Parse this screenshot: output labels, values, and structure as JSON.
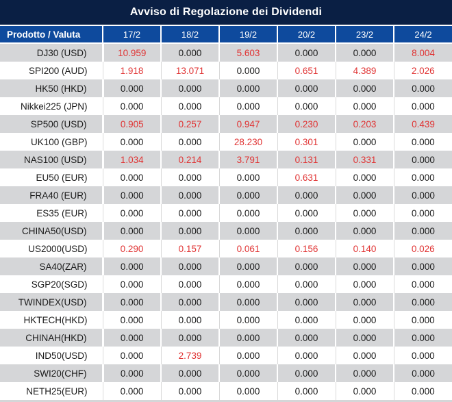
{
  "title": "Avviso di Regolazione dei Dividendi",
  "table": {
    "product_header": "Prodotto / Valuta",
    "date_headers": [
      "17/2",
      "18/2",
      "19/2",
      "20/2",
      "23/2",
      "24/2"
    ],
    "rows": [
      {
        "product": "DJ30 (USD)",
        "values": [
          "10.959",
          "0.000",
          "5.603",
          "0.000",
          "0.000",
          "8.004"
        ]
      },
      {
        "product": "SPI200 (AUD)",
        "values": [
          "1.918",
          "13.071",
          "0.000",
          "0.651",
          "4.389",
          "2.026"
        ]
      },
      {
        "product": "HK50 (HKD)",
        "values": [
          "0.000",
          "0.000",
          "0.000",
          "0.000",
          "0.000",
          "0.000"
        ]
      },
      {
        "product": "Nikkei225 (JPN)",
        "values": [
          "0.000",
          "0.000",
          "0.000",
          "0.000",
          "0.000",
          "0.000"
        ]
      },
      {
        "product": "SP500 (USD)",
        "values": [
          "0.905",
          "0.257",
          "0.947",
          "0.230",
          "0.203",
          "0.439"
        ]
      },
      {
        "product": "UK100 (GBP)",
        "values": [
          "0.000",
          "0.000",
          "28.230",
          "0.301",
          "0.000",
          "0.000"
        ]
      },
      {
        "product": "NAS100 (USD)",
        "values": [
          "1.034",
          "0.214",
          "3.791",
          "0.131",
          "0.331",
          "0.000"
        ]
      },
      {
        "product": "EU50 (EUR)",
        "values": [
          "0.000",
          "0.000",
          "0.000",
          "0.631",
          "0.000",
          "0.000"
        ]
      },
      {
        "product": "FRA40 (EUR)",
        "values": [
          "0.000",
          "0.000",
          "0.000",
          "0.000",
          "0.000",
          "0.000"
        ]
      },
      {
        "product": "ES35 (EUR)",
        "values": [
          "0.000",
          "0.000",
          "0.000",
          "0.000",
          "0.000",
          "0.000"
        ]
      },
      {
        "product": "CHINA50(USD)",
        "values": [
          "0.000",
          "0.000",
          "0.000",
          "0.000",
          "0.000",
          "0.000"
        ]
      },
      {
        "product": "US2000(USD)",
        "values": [
          "0.290",
          "0.157",
          "0.061",
          "0.156",
          "0.140",
          "0.026"
        ]
      },
      {
        "product": "SA40(ZAR)",
        "values": [
          "0.000",
          "0.000",
          "0.000",
          "0.000",
          "0.000",
          "0.000"
        ]
      },
      {
        "product": "SGP20(SGD)",
        "values": [
          "0.000",
          "0.000",
          "0.000",
          "0.000",
          "0.000",
          "0.000"
        ]
      },
      {
        "product": "TWINDEX(USD)",
        "values": [
          "0.000",
          "0.000",
          "0.000",
          "0.000",
          "0.000",
          "0.000"
        ]
      },
      {
        "product": "HKTECH(HKD)",
        "values": [
          "0.000",
          "0.000",
          "0.000",
          "0.000",
          "0.000",
          "0.000"
        ]
      },
      {
        "product": "CHINAH(HKD)",
        "values": [
          "0.000",
          "0.000",
          "0.000",
          "0.000",
          "0.000",
          "0.000"
        ]
      },
      {
        "product": "IND50(USD)",
        "values": [
          "0.000",
          "2.739",
          "0.000",
          "0.000",
          "0.000",
          "0.000"
        ]
      },
      {
        "product": "SWI20(CHF)",
        "values": [
          "0.000",
          "0.000",
          "0.000",
          "0.000",
          "0.000",
          "0.000"
        ]
      },
      {
        "product": "NETH25(EUR)",
        "values": [
          "0.000",
          "0.000",
          "0.000",
          "0.000",
          "0.000",
          "0.000"
        ]
      }
    ]
  },
  "colors": {
    "title_bar_bg": "#0a1f44",
    "header_bg": "#0e4a9d",
    "header_text": "#ffffff",
    "row_alt_bg": "#d5d6d8",
    "row_bg": "#ffffff",
    "value_zero": "#1a1a1a",
    "value_nonzero": "#e03232"
  }
}
